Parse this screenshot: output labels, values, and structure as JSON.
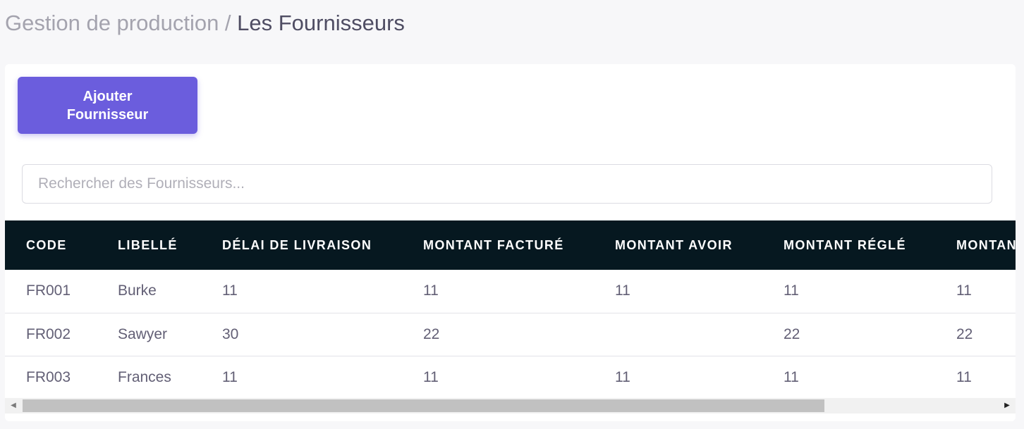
{
  "breadcrumb": {
    "parent": "Gestion de production",
    "separator": " / ",
    "current": "Les Fournisseurs"
  },
  "actions": {
    "add_label": "Ajouter Fournisseur"
  },
  "search": {
    "placeholder": "Rechercher des Fournisseurs...",
    "value": ""
  },
  "table": {
    "headers": [
      "CODE",
      "LIBELLÉ",
      "DÉLAI DE LIVRAISON",
      "MONTANT FACTURÉ",
      "MONTANT AVOIR",
      "MONTANT RÉGLÉ",
      "MONTANT RESTANT"
    ],
    "rows": [
      [
        "FR001",
        "Burke",
        "11",
        "11",
        "11",
        "11",
        "11"
      ],
      [
        "FR002",
        "Sawyer",
        "30",
        "22",
        "",
        "22",
        "22"
      ],
      [
        "FR003",
        "Frances",
        "11",
        "11",
        "11",
        "11",
        "11"
      ]
    ]
  },
  "scrollbar": {
    "left_arrow_icon": "scroll-left-arrow-icon",
    "right_arrow_icon": "scroll-right-arrow-icon"
  },
  "colors": {
    "accent": "#6b5ddd",
    "table_header_bg": "#061820",
    "page_bg": "#f7f7f9"
  }
}
